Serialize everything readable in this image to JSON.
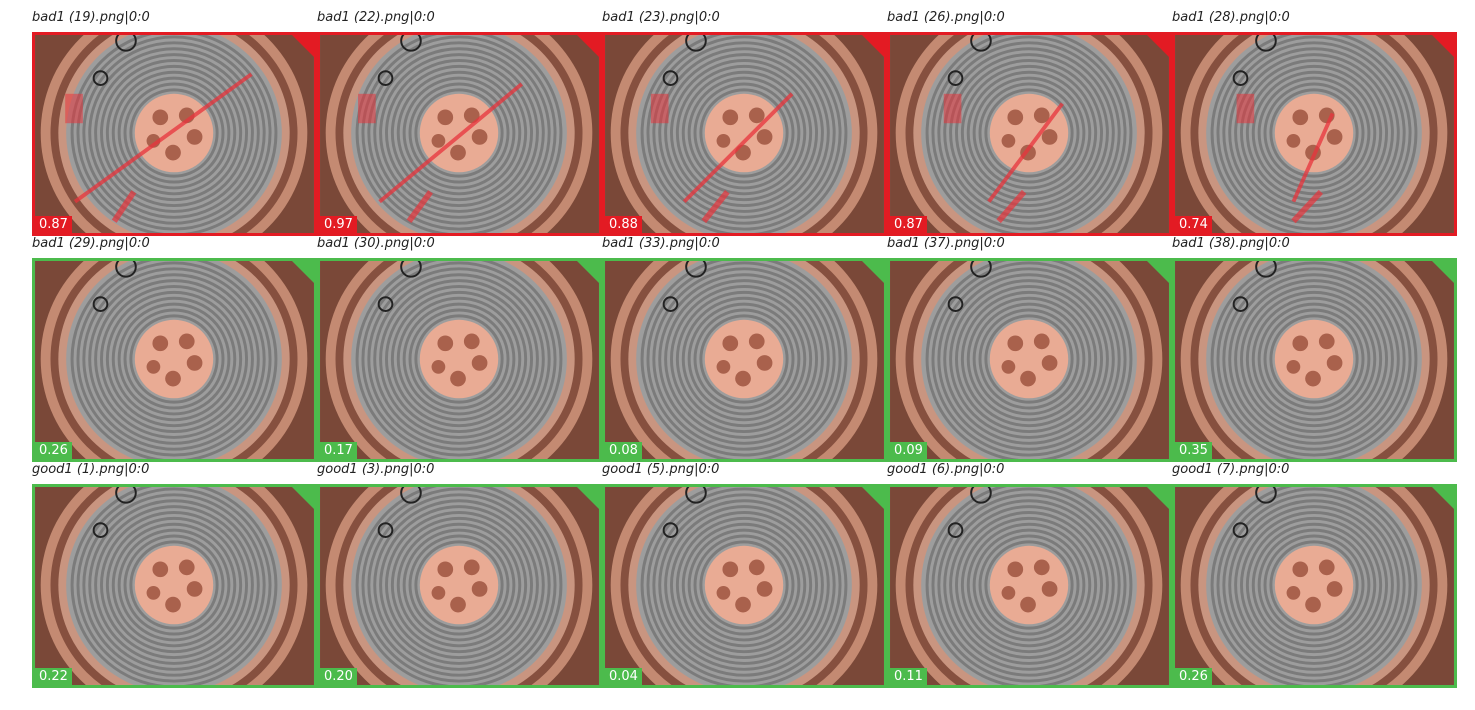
{
  "tiles": [
    {
      "label": "bad1 (19).png|0:0",
      "score": "0.87",
      "color": "#e31b23"
    },
    {
      "label": "bad1 (22).png|0:0",
      "score": "0.97",
      "color": "#e31b23"
    },
    {
      "label": "bad1 (23).png|0:0",
      "score": "0.88",
      "color": "#e31b23"
    },
    {
      "label": "bad1 (26).png|0:0",
      "score": "0.87",
      "color": "#e31b23"
    },
    {
      "label": "bad1 (28).png|0:0",
      "score": "0.74",
      "color": "#e31b23"
    },
    {
      "label": "bad1 (29).png|0:0",
      "score": "0.26",
      "color": "#4cbb4c"
    },
    {
      "label": "bad1 (30).png|0:0",
      "score": "0.17",
      "color": "#4cbb4c"
    },
    {
      "label": "bad1 (33).png|0:0",
      "score": "0.08",
      "color": "#4cbb4c"
    },
    {
      "label": "bad1 (37).png|0:0",
      "score": "0.09",
      "color": "#4cbb4c"
    },
    {
      "label": "bad1 (38).png|0:0",
      "score": "0.35",
      "color": "#4cbb4c"
    },
    {
      "label": "good1 (1).png|0:0",
      "score": "0.22",
      "color": "#4cbb4c"
    },
    {
      "label": "good1 (3).png|0:0",
      "score": "0.20",
      "color": "#4cbb4c"
    },
    {
      "label": "good1 (5).png|0:0",
      "score": "0.04",
      "color": "#4cbb4c"
    },
    {
      "label": "good1 (6).png|0:0",
      "score": "0.11",
      "color": "#4cbb4c"
    },
    {
      "label": "good1 (7).png|0:0",
      "score": "0.26",
      "color": "#4cbb4c"
    }
  ]
}
